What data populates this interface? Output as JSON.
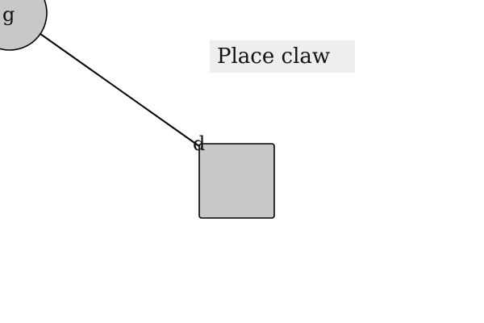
{
  "nodes": {
    "circle_label": "g",
    "square_label": "d"
  },
  "action_label": "Place claw",
  "colors": {
    "node_fill": "#c8c8c8",
    "stroke": "#000000",
    "label_bg": "#eeeeee"
  }
}
